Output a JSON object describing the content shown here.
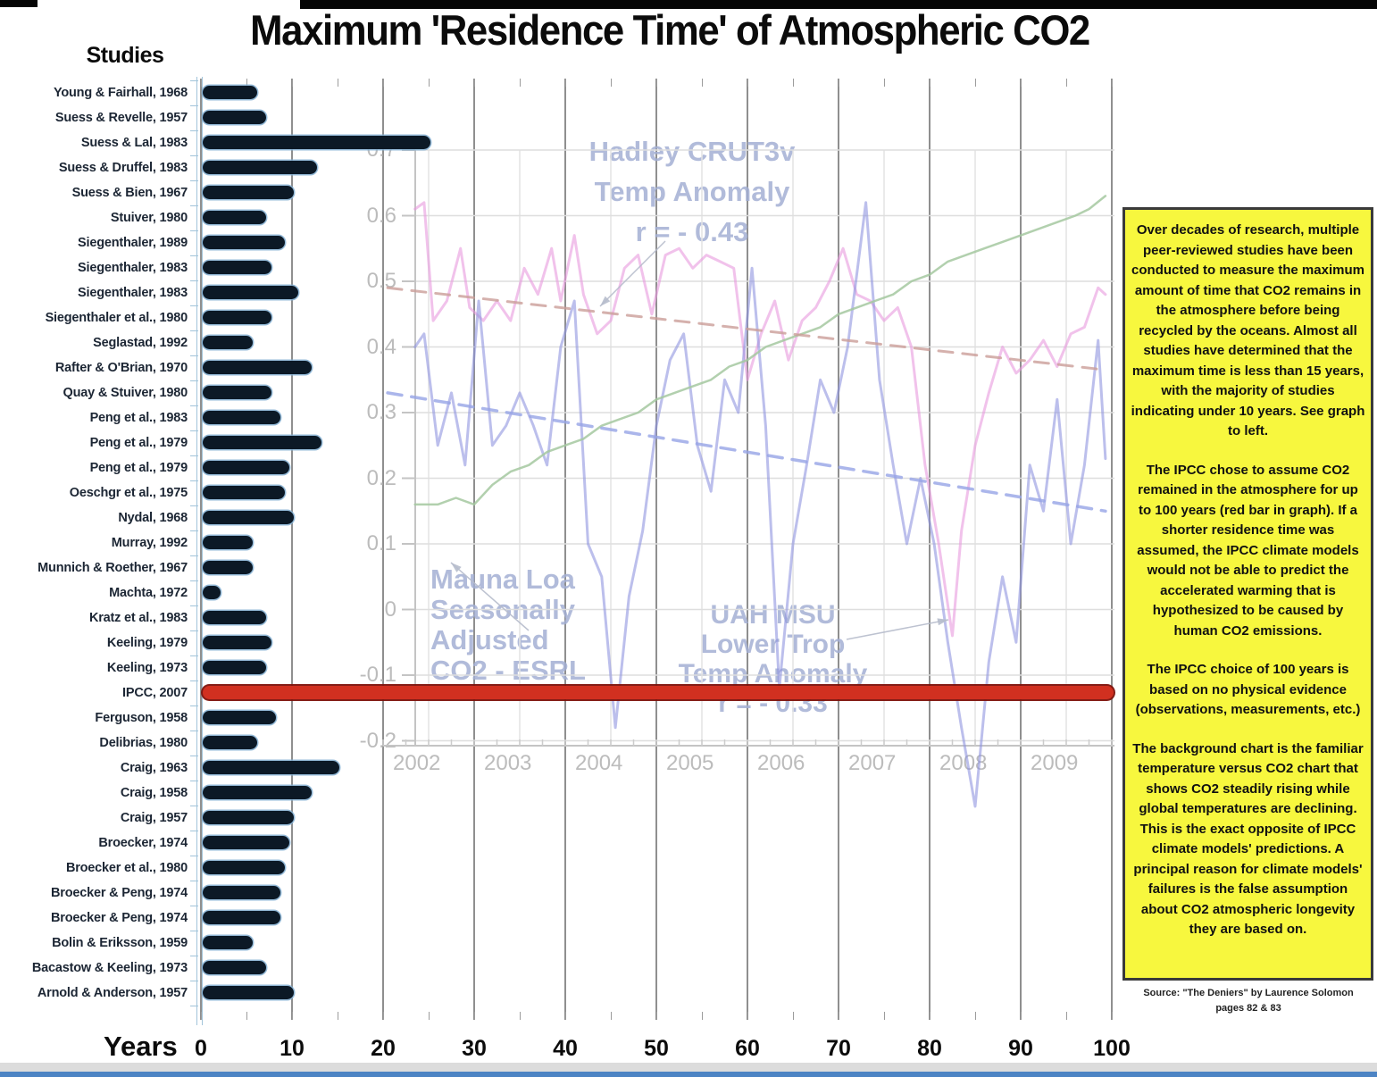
{
  "title": "Maximum 'Residence Time' of Atmospheric CO2",
  "studies_label": "Studies",
  "x_axis": {
    "label": "Years",
    "ticks": [
      "0",
      "10",
      "20",
      "30",
      "40",
      "50",
      "60",
      "70",
      "80",
      "90",
      "100"
    ]
  },
  "chart_data": {
    "type": "bar",
    "orientation": "horizontal",
    "title": "Maximum 'Residence Time' of Atmospheric CO2",
    "xlabel": "Years",
    "ylabel": "Studies",
    "xlim": [
      0,
      100
    ],
    "grid": true,
    "bar_color": "#0c1926",
    "categories": [
      "Young & Fairhall, 1968",
      "Suess & Revelle, 1957",
      "Suess & Lal, 1983",
      "Suess & Druffel, 1983",
      "Suess & Bien, 1967",
      "Stuiver, 1980",
      "Siegenthaler, 1989",
      "Siegenthaler, 1983",
      "Siegenthaler, 1983",
      "Siegenthaler et al., 1980",
      "Seglastad, 1992",
      "Rafter & O'Brian, 1970",
      "Quay & Stuiver, 1980",
      "Peng et al., 1983",
      "Peng et al., 1979",
      "Peng et al., 1979",
      "Oeschgr et al., 1975",
      "Nydal, 1968",
      "Murray, 1992",
      "Munnich & Roether, 1967",
      "Machta, 1972",
      "Kratz et al., 1983",
      "Keeling, 1979",
      "Keeling, 1973",
      "IPCC, 2007",
      "Ferguson, 1958",
      "Delibrias, 1980",
      "Craig, 1963",
      "Craig, 1958",
      "Craig, 1957",
      "Broecker, 1974",
      "Broecker et al., 1980",
      "Broecker & Peng, 1974",
      "Broecker & Peng, 1974",
      "Bolin & Eriksson, 1959",
      "Bacastow & Keeling, 1973",
      "Arnold & Anderson, 1957"
    ],
    "values": [
      6,
      7,
      25,
      12.5,
      10,
      7,
      9,
      7.5,
      10.5,
      7.5,
      5.5,
      12,
      7.5,
      8.5,
      13,
      9.5,
      9,
      10,
      5.5,
      5.5,
      2,
      7,
      7.5,
      7,
      100,
      8,
      6,
      15,
      12,
      10,
      9.5,
      9,
      8.5,
      8.5,
      5.5,
      7,
      10
    ],
    "highlight": {
      "index": 24,
      "category": "IPCC, 2007",
      "value": 100,
      "color": "#d13020"
    }
  },
  "background_chart": {
    "type": "line",
    "ylim": [
      -0.25,
      0.75
    ],
    "y_ticks": [
      "0.7",
      "0.6",
      "0.5",
      "0.4",
      "0.3",
      "0.2",
      "0.1",
      "0",
      "-0.1",
      "-0.2"
    ],
    "x_ticks": [
      "2002",
      "2003",
      "2004",
      "2005",
      "2006",
      "2007",
      "2008",
      "2009"
    ],
    "series": [
      {
        "name": "Hadley CRUT3v Temp Anomaly",
        "color": "#e79ade",
        "width": 3,
        "opacity": 0.6,
        "dashed": false,
        "x": [
          2002.35,
          2002.45,
          2002.55,
          2002.7,
          2002.85,
          2002.95,
          2003.1,
          2003.25,
          2003.4,
          2003.55,
          2003.7,
          2003.85,
          2003.95,
          2004.1,
          2004.2,
          2004.35,
          2004.5,
          2004.65,
          2004.8,
          2004.95,
          2005.1,
          2005.25,
          2005.4,
          2005.55,
          2005.7,
          2005.85,
          2006.0,
          2006.15,
          2006.3,
          2006.45,
          2006.6,
          2006.75,
          2006.9,
          2007.05,
          2007.2,
          2007.35,
          2007.5,
          2007.65,
          2007.8,
          2007.95,
          2008.1,
          2008.25,
          2008.35,
          2008.5,
          2008.65,
          2008.8,
          2008.95,
          2009.1,
          2009.25,
          2009.4,
          2009.55,
          2009.7,
          2009.85,
          2009.93
        ],
        "values": [
          0.61,
          0.62,
          0.44,
          0.47,
          0.55,
          0.46,
          0.44,
          0.47,
          0.44,
          0.52,
          0.48,
          0.55,
          0.47,
          0.57,
          0.48,
          0.42,
          0.44,
          0.52,
          0.54,
          0.45,
          0.54,
          0.55,
          0.52,
          0.54,
          0.53,
          0.52,
          0.35,
          0.42,
          0.47,
          0.38,
          0.44,
          0.46,
          0.5,
          0.55,
          0.48,
          0.47,
          0.44,
          0.46,
          0.4,
          0.22,
          0.1,
          -0.04,
          0.12,
          0.25,
          0.33,
          0.4,
          0.36,
          0.38,
          0.41,
          0.37,
          0.42,
          0.43,
          0.49,
          0.48
        ]
      },
      {
        "name": "UAH MSU Lower Trop Temp Anomaly",
        "color": "#8f94e0",
        "width": 3,
        "opacity": 0.6,
        "dashed": false,
        "x": [
          2002.35,
          2002.45,
          2002.6,
          2002.75,
          2002.9,
          2003.05,
          2003.2,
          2003.35,
          2003.5,
          2003.65,
          2003.8,
          2003.95,
          2004.1,
          2004.25,
          2004.4,
          2004.55,
          2004.7,
          2004.85,
          2005.0,
          2005.15,
          2005.3,
          2005.45,
          2005.6,
          2005.75,
          2005.9,
          2006.05,
          2006.2,
          2006.35,
          2006.5,
          2006.65,
          2006.8,
          2006.95,
          2007.1,
          2007.3,
          2007.45,
          2007.6,
          2007.75,
          2007.9,
          2008.05,
          2008.2,
          2008.35,
          2008.5,
          2008.65,
          2008.8,
          2008.95,
          2009.1,
          2009.25,
          2009.4,
          2009.55,
          2009.7,
          2009.85,
          2009.93
        ],
        "values": [
          0.4,
          0.42,
          0.25,
          0.33,
          0.22,
          0.47,
          0.25,
          0.28,
          0.33,
          0.28,
          0.22,
          0.4,
          0.47,
          0.1,
          0.05,
          -0.18,
          0.02,
          0.12,
          0.28,
          0.38,
          0.42,
          0.25,
          0.18,
          0.35,
          0.3,
          0.52,
          0.28,
          -0.12,
          0.1,
          0.22,
          0.35,
          0.3,
          0.4,
          0.62,
          0.35,
          0.22,
          0.1,
          0.2,
          0.1,
          -0.05,
          -0.18,
          -0.3,
          -0.08,
          0.05,
          -0.05,
          0.22,
          0.15,
          0.32,
          0.1,
          0.22,
          0.41,
          0.23
        ]
      },
      {
        "name": "Mauna Loa Seasonally Adjusted CO2 - ESRL",
        "color": "#a4c8a0",
        "width": 2.5,
        "opacity": 0.85,
        "dashed": false,
        "x": [
          2002.35,
          2002.6,
          2002.8,
          2003.0,
          2003.2,
          2003.4,
          2003.6,
          2003.8,
          2004.0,
          2004.2,
          2004.4,
          2004.6,
          2004.8,
          2005.0,
          2005.2,
          2005.4,
          2005.6,
          2005.8,
          2006.0,
          2006.2,
          2006.4,
          2006.6,
          2006.8,
          2007.0,
          2007.2,
          2007.4,
          2007.6,
          2007.8,
          2008.0,
          2008.2,
          2008.4,
          2008.6,
          2008.8,
          2009.0,
          2009.2,
          2009.4,
          2009.6,
          2009.75,
          2009.93
        ],
        "values": [
          0.16,
          0.16,
          0.17,
          0.16,
          0.19,
          0.21,
          0.22,
          0.24,
          0.25,
          0.26,
          0.28,
          0.29,
          0.3,
          0.32,
          0.33,
          0.34,
          0.35,
          0.37,
          0.38,
          0.4,
          0.41,
          0.42,
          0.43,
          0.45,
          0.46,
          0.47,
          0.48,
          0.5,
          0.51,
          0.53,
          0.54,
          0.55,
          0.56,
          0.57,
          0.58,
          0.59,
          0.6,
          0.61,
          0.63
        ]
      },
      {
        "name": "Hadley trend",
        "color": "#cb9e98",
        "width": 3,
        "opacity": 0.8,
        "dashed": true,
        "x": [
          2002.05,
          2009.93
        ],
        "values": [
          0.49,
          0.365
        ]
      },
      {
        "name": "UAH trend",
        "color": "#96a4e6",
        "width": 3.5,
        "opacity": 0.8,
        "dashed": true,
        "x": [
          2002.05,
          2009.93
        ],
        "values": [
          0.33,
          0.15
        ]
      }
    ],
    "annotations": [
      {
        "id": "hadley",
        "text": "Hadley CRUT3v\nTemp Anomaly\nr = - 0.43"
      },
      {
        "id": "maunaloa",
        "text": "Mauna Loa\nSeasonally\nAdjusted\nCO2 - ESRL"
      },
      {
        "id": "uah",
        "text": "UAH MSU\nLower Trop\nTemp Anomaly\nr = - 0.33"
      }
    ]
  },
  "info_box": {
    "background": "#f7f73e",
    "paragraphs": [
      "Over decades of research, multiple peer-reviewed studies have been conducted to measure the maximum amount of time that CO2 remains in the atmosphere before being recycled by the oceans. Almost all studies have determined that the maximum time is less than 15 years, with the majority of studies indicating under 10 years. See graph to left.",
      "The IPCC chose to assume CO2 remained in the atmosphere for up to 100 years (red bar in graph). If a shorter residence time was assumed, the IPCC climate models would not be able to predict the accelerated warming that is hypothesized to be caused by human CO2 emissions.",
      "The IPCC choice of 100 years is based on no physical evidence (observations, measurements, etc.)",
      "The background chart is the familiar temperature versus CO2 chart that shows CO2 steadily rising while global temperatures are declining. This is the exact opposite of IPCC climate models' predictions. A principal reason for climate models' failures is the false assumption about CO2 atmospheric longevity they are based on."
    ]
  },
  "source": {
    "line1": "Source: \"The Deniers\" by Laurence Solomon",
    "line2": "pages 82 & 83"
  }
}
